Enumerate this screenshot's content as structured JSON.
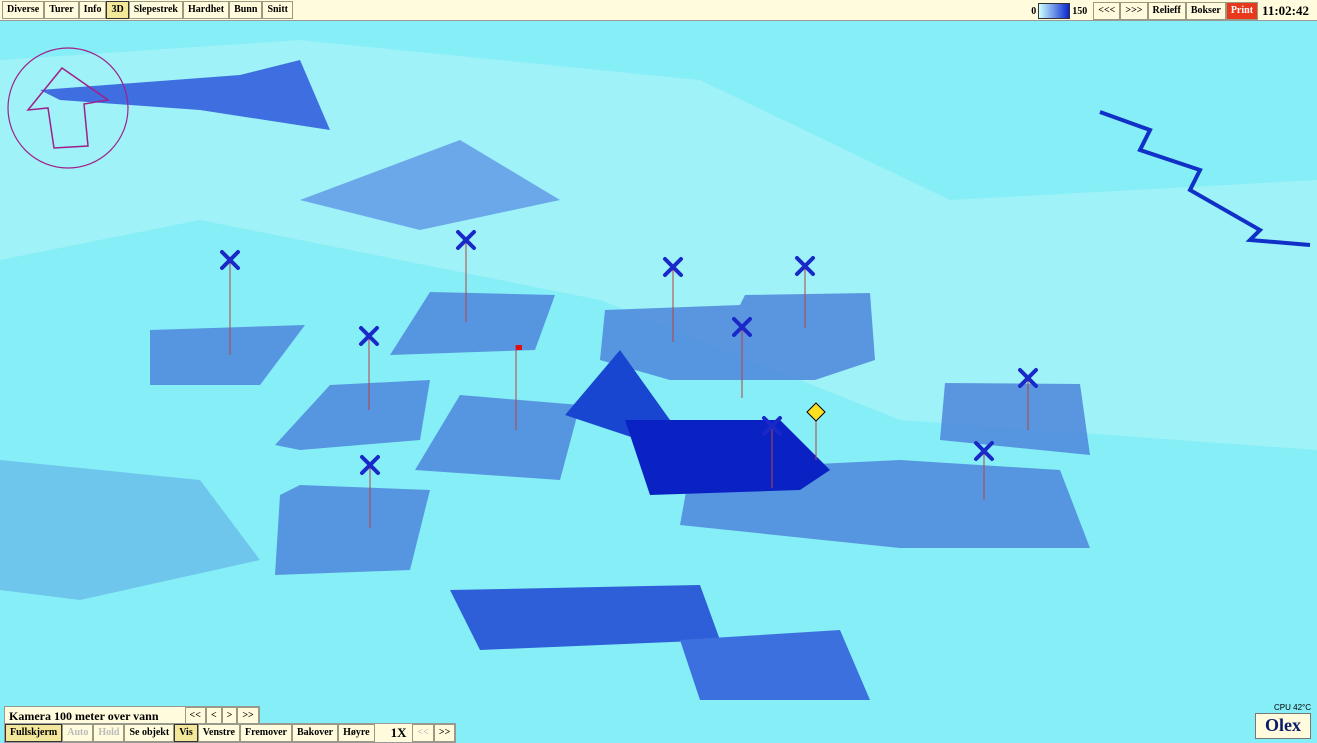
{
  "top_bar": {
    "left": [
      "Diverse",
      "Turer",
      "Info",
      "3D",
      "Slepestrek",
      "Hardhet",
      "Bunn",
      "Snitt"
    ],
    "scale_min": "0",
    "scale_max": "150",
    "right": [
      "<<<",
      ">>>",
      "Relieff",
      "Bokser",
      "Print"
    ],
    "clock": "11:02:42"
  },
  "camera_bar": {
    "label": "Kamera 100 meter over vann",
    "buttons": [
      "<<",
      "<",
      ">",
      ">>"
    ]
  },
  "bottom_bar": {
    "buttons": [
      "Fullskjerm",
      "Auto",
      "Hold",
      "Se objekt",
      "Vis",
      "Venstre",
      "Fremover",
      "Bakover",
      "Høyre"
    ],
    "speed": "1X",
    "speed_buttons": [
      "<<",
      ">>"
    ]
  },
  "status": {
    "cpu": "CPU 42°C"
  },
  "logo": "Olex"
}
